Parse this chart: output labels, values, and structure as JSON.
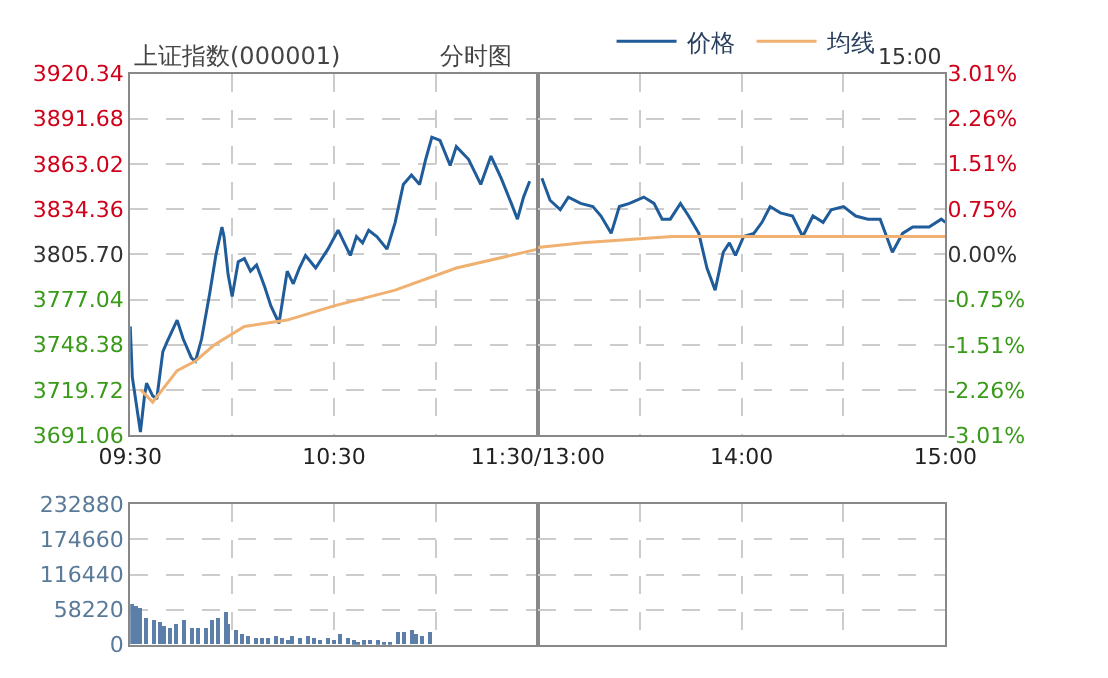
{
  "chart_data": [
    {
      "type": "line",
      "title": "上证指数(000001)",
      "subtitle": "分时图",
      "series": [
        {
          "name": "价格",
          "color": "#1f5c99",
          "x": [
            9.5,
            9.51,
            9.55,
            9.57,
            9.58,
            9.61,
            9.63,
            9.66,
            9.68,
            9.73,
            9.76,
            9.8,
            9.82,
            9.85,
            9.89,
            9.92,
            9.95,
            9.96,
            9.98,
            10.0,
            10.03,
            10.06,
            10.09,
            10.12,
            10.16,
            10.19,
            10.23,
            10.27,
            10.3,
            10.33,
            10.36,
            10.41,
            10.47,
            10.52,
            10.55,
            10.58,
            10.61,
            10.64,
            10.67,
            10.71,
            10.76,
            10.8,
            10.84,
            10.88,
            10.92,
            10.95,
            10.98,
            11.02,
            11.07,
            11.1,
            11.16,
            11.22,
            11.27,
            11.32,
            11.37,
            11.4,
            11.43,
            11.46
          ],
          "values": [
            3760,
            3728,
            3693,
            3716,
            3724,
            3716,
            3714,
            3744,
            3750,
            3764,
            3752,
            3740,
            3738,
            3752,
            3781,
            3805,
            3823,
            3817,
            3793,
            3779,
            3801,
            3803,
            3795,
            3799,
            3785,
            3773,
            3762,
            3795,
            3787,
            3797,
            3805,
            3797,
            3809,
            3821,
            3813,
            3805,
            3817,
            3813,
            3821,
            3817,
            3809,
            3826,
            3850,
            3856,
            3850,
            3866,
            3880,
            3878,
            3862,
            3874,
            3866,
            3850,
            3868,
            3854,
            3838,
            3828,
            3842,
            3852
          ]
        },
        {
          "name": "均线",
          "color": "#f0b070",
          "x": [
            9.55,
            9.61,
            9.73,
            9.82,
            9.91,
            10.06,
            10.27,
            10.5,
            10.8,
            11.1,
            11.5
          ],
          "values": [
            3720,
            3712,
            3732,
            3738,
            3748,
            3760,
            3764,
            3773,
            3783,
            3797,
            3809
          ]
        }
      ],
      "xlim": [
        9.5,
        11.5
      ],
      "xticks": [
        {
          "value": 9.5,
          "label": "09:30"
        },
        {
          "value": 10,
          "label": null
        },
        {
          "value": 10.5,
          "label": "10:30"
        },
        {
          "value": 11,
          "label": null
        },
        {
          "value": 11.5,
          "label": "11:30/13:00"
        }
      ],
      "ylim": [
        3691.06,
        3920.34
      ],
      "yticks": [
        {
          "value": 3691.06,
          "label": "3691.06"
        },
        {
          "value": 3719.72,
          "label": "3719.72"
        },
        {
          "value": 3748.38,
          "label": "3748.38"
        },
        {
          "value": 3777.04,
          "label": "3777.04"
        },
        {
          "value": 3805.7,
          "label": "3805.70"
        },
        {
          "value": 3834.36,
          "label": "3834.36"
        },
        {
          "value": 3863.02,
          "label": "3863.02"
        },
        {
          "value": 3891.68,
          "label": "3891.68"
        },
        {
          "value": 3920.34,
          "label": "3920.34"
        }
      ],
      "grid": true,
      "legend": "top",
      "marker": "none",
      "line_style": "solid"
    },
    {
      "type": "line",
      "annotations": [
        "15:00"
      ],
      "series": [
        {
          "color": "#1f5c99",
          "x": [
            13.02,
            13.06,
            13.11,
            13.15,
            13.21,
            13.27,
            13.31,
            13.36,
            13.4,
            13.45,
            13.52,
            13.57,
            13.61,
            13.65,
            13.7,
            13.74,
            13.79,
            13.83,
            13.87,
            13.91,
            13.94,
            13.97,
            14.01,
            14.06,
            14.1,
            14.14,
            14.19,
            14.25,
            14.3,
            14.35,
            14.4,
            14.44,
            14.5,
            14.56,
            14.62,
            14.68,
            14.74,
            14.79,
            14.84,
            14.92,
            14.98,
            15
          ],
          "values": [
            3854,
            3840,
            3834,
            3842,
            3838,
            3836,
            3830,
            3819,
            3836,
            3838,
            3842,
            3838,
            3828,
            3828,
            3838,
            3830,
            3819,
            3797,
            3783,
            3807,
            3813,
            3805,
            3817,
            3819,
            3826,
            3836,
            3832,
            3830,
            3817,
            3830,
            3826,
            3834,
            3836,
            3830,
            3828,
            3828,
            3807,
            3819,
            3823,
            3823,
            3828,
            3826
          ]
        },
        {
          "color": "#f0b070",
          "x": [
            13.0,
            13.22,
            13.66,
            14.12,
            14.56,
            15
          ],
          "values": [
            3810,
            3813,
            3817,
            3817,
            3817,
            3817
          ]
        }
      ],
      "xlim": [
        13,
        15
      ],
      "xticks": [
        {
          "value": 13.5,
          "label": null
        },
        {
          "value": 14,
          "label": "14:00"
        },
        {
          "value": 14.5,
          "label": null
        },
        {
          "value": 15,
          "label": "15:00"
        }
      ],
      "ylim": [
        3691.06,
        3920.34
      ],
      "yticks": [
        3691.06,
        3719.72,
        3748.38,
        3777.04,
        3805.7,
        3834.36,
        3863.02,
        3891.68,
        3920.34
      ],
      "y2lim": [
        -3.01,
        3.01
      ],
      "y2ticks": [
        {
          "value": -3.01,
          "label": "-3.01%"
        },
        {
          "value": -2.26,
          "label": "-2.26%"
        },
        {
          "value": -1.51,
          "label": "-1.51%"
        },
        {
          "value": -0.75,
          "label": "-0.75%"
        },
        {
          "value": 0,
          "label": "0.00%"
        },
        {
          "value": 0.75,
          "label": "0.75%"
        },
        {
          "value": 1.51,
          "label": "1.51%"
        },
        {
          "value": 2.26,
          "label": "2.26%"
        },
        {
          "value": 3.01,
          "label": "3.01%"
        }
      ],
      "grid": true,
      "marker": "none",
      "line_style": "solid",
      "tick_labels": "x"
    },
    {
      "type": "bar",
      "color": "#5b7fa8",
      "x": [
        9.51,
        9.53,
        9.55,
        9.58,
        9.62,
        9.65,
        9.67,
        9.7,
        9.73,
        9.77,
        9.8,
        9.83,
        9.87,
        9.9,
        9.93,
        9.97,
        9.98,
        10.02,
        10.05,
        10.08,
        10.12,
        10.15,
        10.18,
        10.22,
        10.25,
        10.28,
        10.3,
        10.33,
        10.37,
        10.4,
        10.43,
        10.47,
        10.5,
        10.53,
        10.57,
        10.6,
        10.62,
        10.65,
        10.68,
        10.72,
        10.75,
        10.78,
        10.82,
        10.85,
        10.88,
        10.9,
        10.93,
        10.97
      ],
      "values": [
        68000,
        65000,
        62000,
        45000,
        40000,
        38000,
        31000,
        28000,
        34000,
        40000,
        28000,
        26000,
        28000,
        42000,
        45000,
        53000,
        34000,
        23000,
        17000,
        15000,
        11000,
        10000,
        11000,
        14000,
        10000,
        8000,
        13000,
        10000,
        15000,
        10000,
        8000,
        10000,
        8000,
        16000,
        10000,
        6000,
        3000,
        6000,
        8000,
        6000,
        5000,
        3000,
        22000,
        19000,
        23000,
        17000,
        15000,
        19000
      ],
      "xlim": [
        9.5,
        11.5
      ],
      "xticks": [
        9.5,
        10,
        10.5,
        11,
        11.5
      ],
      "ylim": [
        0,
        232880
      ],
      "yticks": [
        0,
        58220,
        116440,
        174660,
        232880
      ],
      "grid": true,
      "tick_labels": "y"
    },
    {
      "type": "bar",
      "xlim": [
        13,
        15
      ],
      "xticks": [
        13.5,
        14,
        14.5,
        15
      ],
      "ylim": [
        0,
        232880
      ],
      "yticks": [
        0,
        58220,
        116440,
        174660,
        232880
      ],
      "grid": true,
      "tick_labels": false
    }
  ]
}
